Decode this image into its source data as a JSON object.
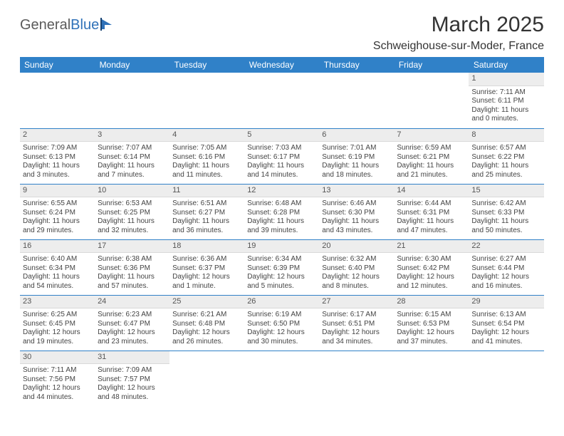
{
  "logo": {
    "part1": "General",
    "part2": "Blue"
  },
  "title": "March 2025",
  "location": "Schweighouse-sur-Moder, France",
  "colors": {
    "header_bg": "#3081c8",
    "header_text": "#ffffff",
    "cell_border": "#3081c8",
    "daynum_bg": "#ededed",
    "body_text": "#444444",
    "logo_gray": "#5a5a5a",
    "logo_blue": "#2f71b8"
  },
  "weekdays": [
    "Sunday",
    "Monday",
    "Tuesday",
    "Wednesday",
    "Thursday",
    "Friday",
    "Saturday"
  ],
  "weeks": [
    [
      null,
      null,
      null,
      null,
      null,
      null,
      {
        "d": "1",
        "sr": "Sunrise: 7:11 AM",
        "ss": "Sunset: 6:11 PM",
        "dl1": "Daylight: 11 hours",
        "dl2": "and 0 minutes."
      }
    ],
    [
      {
        "d": "2",
        "sr": "Sunrise: 7:09 AM",
        "ss": "Sunset: 6:13 PM",
        "dl1": "Daylight: 11 hours",
        "dl2": "and 3 minutes."
      },
      {
        "d": "3",
        "sr": "Sunrise: 7:07 AM",
        "ss": "Sunset: 6:14 PM",
        "dl1": "Daylight: 11 hours",
        "dl2": "and 7 minutes."
      },
      {
        "d": "4",
        "sr": "Sunrise: 7:05 AM",
        "ss": "Sunset: 6:16 PM",
        "dl1": "Daylight: 11 hours",
        "dl2": "and 11 minutes."
      },
      {
        "d": "5",
        "sr": "Sunrise: 7:03 AM",
        "ss": "Sunset: 6:17 PM",
        "dl1": "Daylight: 11 hours",
        "dl2": "and 14 minutes."
      },
      {
        "d": "6",
        "sr": "Sunrise: 7:01 AM",
        "ss": "Sunset: 6:19 PM",
        "dl1": "Daylight: 11 hours",
        "dl2": "and 18 minutes."
      },
      {
        "d": "7",
        "sr": "Sunrise: 6:59 AM",
        "ss": "Sunset: 6:21 PM",
        "dl1": "Daylight: 11 hours",
        "dl2": "and 21 minutes."
      },
      {
        "d": "8",
        "sr": "Sunrise: 6:57 AM",
        "ss": "Sunset: 6:22 PM",
        "dl1": "Daylight: 11 hours",
        "dl2": "and 25 minutes."
      }
    ],
    [
      {
        "d": "9",
        "sr": "Sunrise: 6:55 AM",
        "ss": "Sunset: 6:24 PM",
        "dl1": "Daylight: 11 hours",
        "dl2": "and 29 minutes."
      },
      {
        "d": "10",
        "sr": "Sunrise: 6:53 AM",
        "ss": "Sunset: 6:25 PM",
        "dl1": "Daylight: 11 hours",
        "dl2": "and 32 minutes."
      },
      {
        "d": "11",
        "sr": "Sunrise: 6:51 AM",
        "ss": "Sunset: 6:27 PM",
        "dl1": "Daylight: 11 hours",
        "dl2": "and 36 minutes."
      },
      {
        "d": "12",
        "sr": "Sunrise: 6:48 AM",
        "ss": "Sunset: 6:28 PM",
        "dl1": "Daylight: 11 hours",
        "dl2": "and 39 minutes."
      },
      {
        "d": "13",
        "sr": "Sunrise: 6:46 AM",
        "ss": "Sunset: 6:30 PM",
        "dl1": "Daylight: 11 hours",
        "dl2": "and 43 minutes."
      },
      {
        "d": "14",
        "sr": "Sunrise: 6:44 AM",
        "ss": "Sunset: 6:31 PM",
        "dl1": "Daylight: 11 hours",
        "dl2": "and 47 minutes."
      },
      {
        "d": "15",
        "sr": "Sunrise: 6:42 AM",
        "ss": "Sunset: 6:33 PM",
        "dl1": "Daylight: 11 hours",
        "dl2": "and 50 minutes."
      }
    ],
    [
      {
        "d": "16",
        "sr": "Sunrise: 6:40 AM",
        "ss": "Sunset: 6:34 PM",
        "dl1": "Daylight: 11 hours",
        "dl2": "and 54 minutes."
      },
      {
        "d": "17",
        "sr": "Sunrise: 6:38 AM",
        "ss": "Sunset: 6:36 PM",
        "dl1": "Daylight: 11 hours",
        "dl2": "and 57 minutes."
      },
      {
        "d": "18",
        "sr": "Sunrise: 6:36 AM",
        "ss": "Sunset: 6:37 PM",
        "dl1": "Daylight: 12 hours",
        "dl2": "and 1 minute."
      },
      {
        "d": "19",
        "sr": "Sunrise: 6:34 AM",
        "ss": "Sunset: 6:39 PM",
        "dl1": "Daylight: 12 hours",
        "dl2": "and 5 minutes."
      },
      {
        "d": "20",
        "sr": "Sunrise: 6:32 AM",
        "ss": "Sunset: 6:40 PM",
        "dl1": "Daylight: 12 hours",
        "dl2": "and 8 minutes."
      },
      {
        "d": "21",
        "sr": "Sunrise: 6:30 AM",
        "ss": "Sunset: 6:42 PM",
        "dl1": "Daylight: 12 hours",
        "dl2": "and 12 minutes."
      },
      {
        "d": "22",
        "sr": "Sunrise: 6:27 AM",
        "ss": "Sunset: 6:44 PM",
        "dl1": "Daylight: 12 hours",
        "dl2": "and 16 minutes."
      }
    ],
    [
      {
        "d": "23",
        "sr": "Sunrise: 6:25 AM",
        "ss": "Sunset: 6:45 PM",
        "dl1": "Daylight: 12 hours",
        "dl2": "and 19 minutes."
      },
      {
        "d": "24",
        "sr": "Sunrise: 6:23 AM",
        "ss": "Sunset: 6:47 PM",
        "dl1": "Daylight: 12 hours",
        "dl2": "and 23 minutes."
      },
      {
        "d": "25",
        "sr": "Sunrise: 6:21 AM",
        "ss": "Sunset: 6:48 PM",
        "dl1": "Daylight: 12 hours",
        "dl2": "and 26 minutes."
      },
      {
        "d": "26",
        "sr": "Sunrise: 6:19 AM",
        "ss": "Sunset: 6:50 PM",
        "dl1": "Daylight: 12 hours",
        "dl2": "and 30 minutes."
      },
      {
        "d": "27",
        "sr": "Sunrise: 6:17 AM",
        "ss": "Sunset: 6:51 PM",
        "dl1": "Daylight: 12 hours",
        "dl2": "and 34 minutes."
      },
      {
        "d": "28",
        "sr": "Sunrise: 6:15 AM",
        "ss": "Sunset: 6:53 PM",
        "dl1": "Daylight: 12 hours",
        "dl2": "and 37 minutes."
      },
      {
        "d": "29",
        "sr": "Sunrise: 6:13 AM",
        "ss": "Sunset: 6:54 PM",
        "dl1": "Daylight: 12 hours",
        "dl2": "and 41 minutes."
      }
    ],
    [
      {
        "d": "30",
        "sr": "Sunrise: 7:11 AM",
        "ss": "Sunset: 7:56 PM",
        "dl1": "Daylight: 12 hours",
        "dl2": "and 44 minutes."
      },
      {
        "d": "31",
        "sr": "Sunrise: 7:09 AM",
        "ss": "Sunset: 7:57 PM",
        "dl1": "Daylight: 12 hours",
        "dl2": "and 48 minutes."
      },
      null,
      null,
      null,
      null,
      null
    ]
  ]
}
